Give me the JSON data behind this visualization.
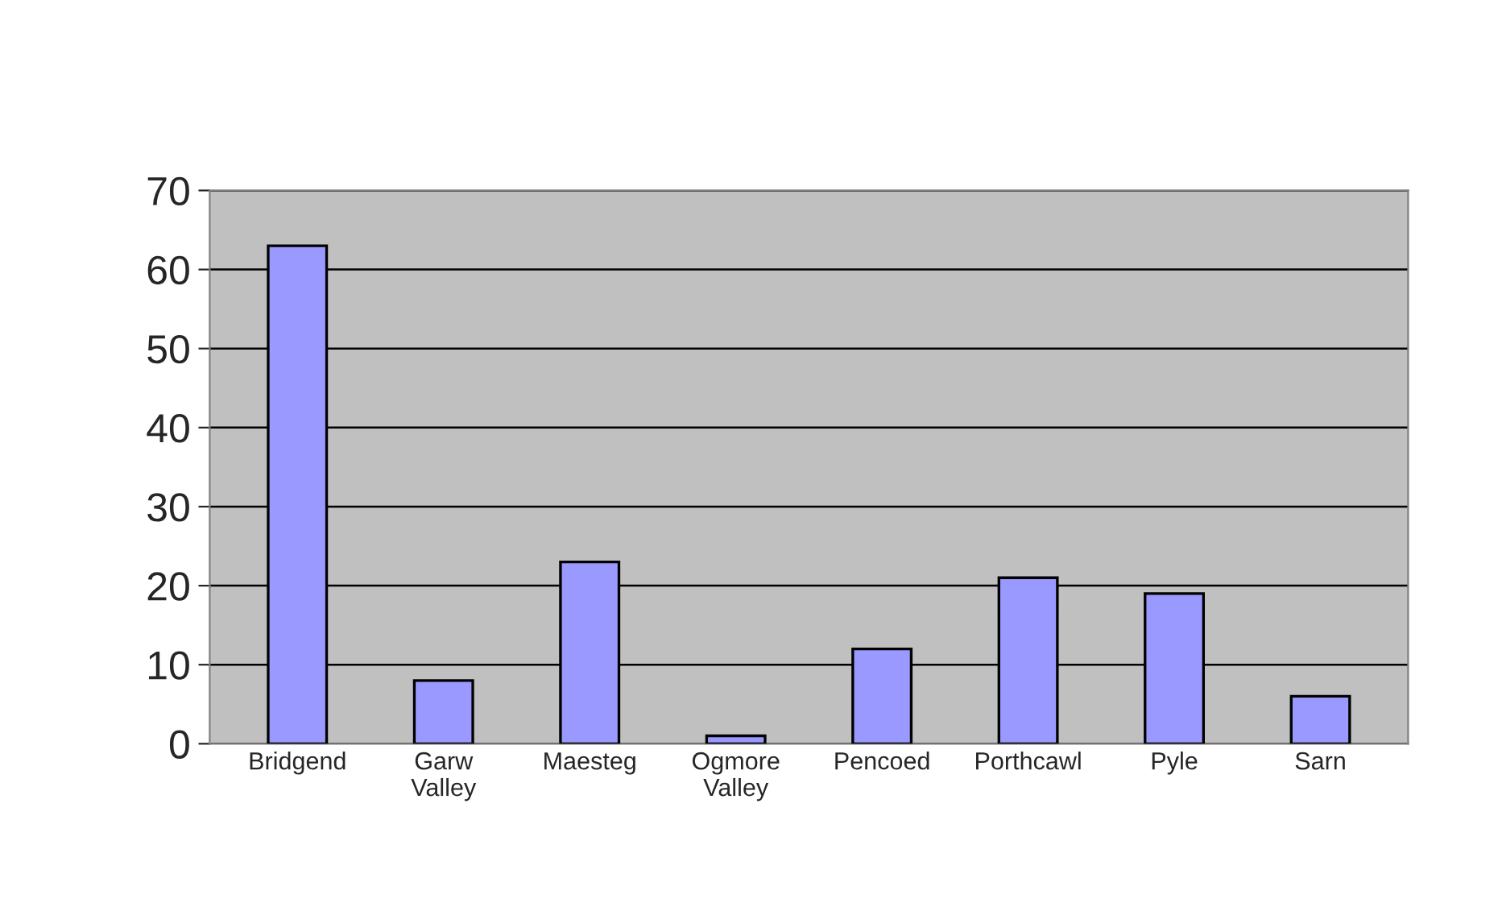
{
  "chart_data": {
    "type": "bar",
    "categories": [
      "Bridgend",
      "Garw\nValley",
      "Maesteg",
      "Ogmore\nValley",
      "Pencoed",
      "Porthcawl",
      "Pyle",
      "Sarn"
    ],
    "values": [
      63,
      8,
      23,
      1,
      12,
      21,
      19,
      6
    ],
    "color": "#9999ff",
    "ylim": [
      0,
      70
    ],
    "yticks": [
      0,
      10,
      20,
      30,
      40,
      50,
      60,
      70
    ],
    "grid": "y"
  }
}
